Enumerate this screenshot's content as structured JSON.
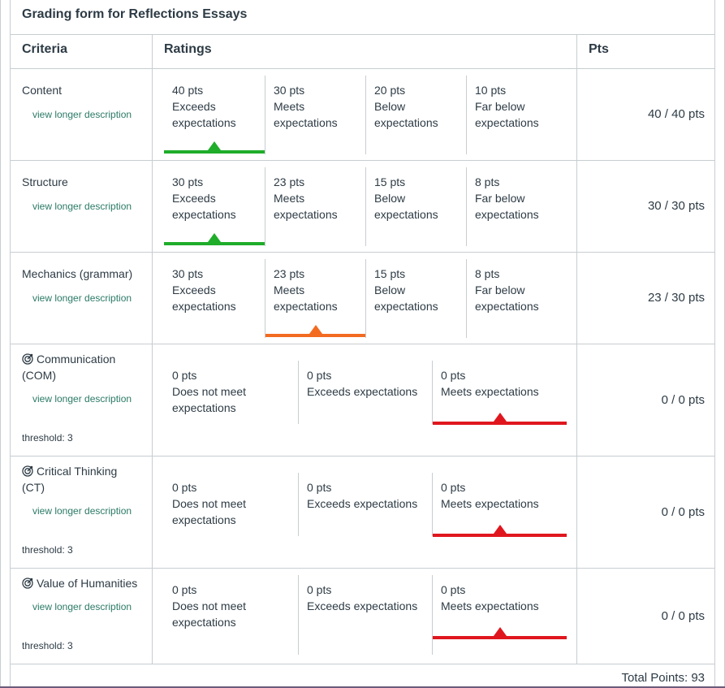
{
  "title": "Grading form for Reflections Essays",
  "headers": {
    "criteria": "Criteria",
    "ratings": "Ratings",
    "pts": "Pts"
  },
  "view_longer": "view longer description",
  "colors": {
    "green": "#1fad2a",
    "orange": "#f26b21",
    "red": "#e0161e"
  },
  "criteria": [
    {
      "name": "Content",
      "score": "40 / 40 pts",
      "ratings": [
        {
          "pts": "40 pts",
          "desc": "Exceeds expectations"
        },
        {
          "pts": "30 pts",
          "desc": "Meets expectations"
        },
        {
          "pts": "20 pts",
          "desc": "Below expectations"
        },
        {
          "pts": "10 pts",
          "desc": "Far below expectations"
        }
      ]
    },
    {
      "name": "Structure",
      "score": "30 / 30 pts",
      "ratings": [
        {
          "pts": "30 pts",
          "desc": "Exceeds expectations"
        },
        {
          "pts": "23 pts",
          "desc": "Meets expectations"
        },
        {
          "pts": "15 pts",
          "desc": "Below expectations"
        },
        {
          "pts": "8 pts",
          "desc": "Far below expectations"
        }
      ]
    },
    {
      "name": "Mechanics (grammar)",
      "score": "23 / 30 pts",
      "ratings": [
        {
          "pts": "30 pts",
          "desc": "Exceeds expectations"
        },
        {
          "pts": "23 pts",
          "desc": "Meets expectations"
        },
        {
          "pts": "15 pts",
          "desc": "Below expectations"
        },
        {
          "pts": "8 pts",
          "desc": "Far below expectations"
        }
      ]
    },
    {
      "name": "Communication (COM)",
      "threshold": "threshold: 3",
      "score": "0 / 0 pts",
      "ratings": [
        {
          "pts": "0 pts",
          "desc": "Does not meet expectations"
        },
        {
          "pts": "0 pts",
          "desc": "Exceeds expectations"
        },
        {
          "pts": "0 pts",
          "desc": "Meets expectations"
        }
      ]
    },
    {
      "name": "Critical Thinking (CT)",
      "threshold": "threshold: 3",
      "score": "0 / 0 pts",
      "ratings": [
        {
          "pts": "0 pts",
          "desc": "Does not meet expectations"
        },
        {
          "pts": "0 pts",
          "desc": "Exceeds expectations"
        },
        {
          "pts": "0 pts",
          "desc": "Meets expectations"
        }
      ]
    },
    {
      "name": "Value of Humanities",
      "threshold": "threshold: 3",
      "score": "0 / 0 pts",
      "ratings": [
        {
          "pts": "0 pts",
          "desc": "Does not meet expectations"
        },
        {
          "pts": "0 pts",
          "desc": "Exceeds expectations"
        },
        {
          "pts": "0 pts",
          "desc": "Meets expectations"
        }
      ]
    }
  ],
  "total": "Total Points: 93"
}
